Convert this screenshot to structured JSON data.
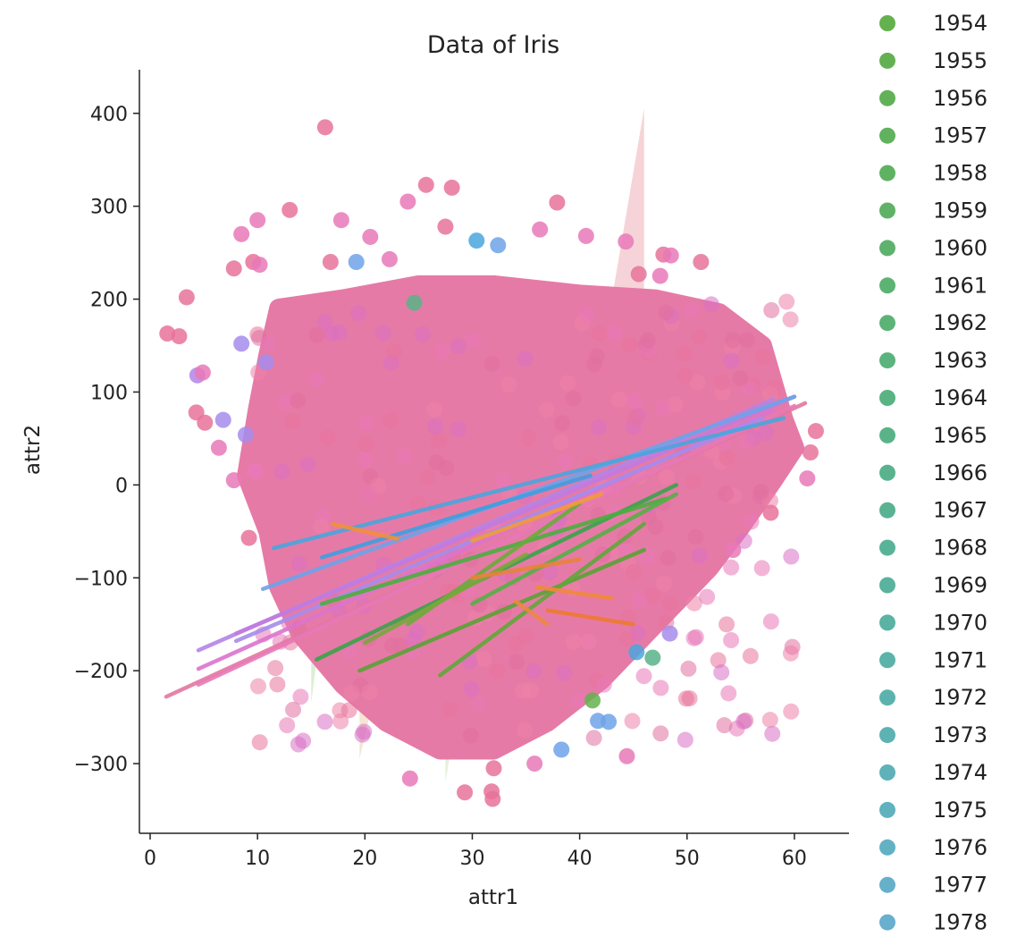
{
  "chart_data": {
    "type": "scatter",
    "title": "Data of Iris",
    "xlabel": "attr1",
    "ylabel": "attr2",
    "xlim": [
      -1,
      65
    ],
    "ylim": [
      -375,
      445
    ],
    "x_ticks": [
      0,
      10,
      20,
      30,
      40,
      50,
      60
    ],
    "y_ticks": [
      -300,
      -200,
      -100,
      0,
      100,
      200,
      300,
      400
    ],
    "y_tick_labels": [
      "−300",
      "−200",
      "−100",
      "0",
      "100",
      "200",
      "300",
      "400"
    ],
    "grid": false,
    "legend_placement": "right",
    "legend": [
      {
        "name": "1954",
        "color": "#64b14e"
      },
      {
        "name": "1955",
        "color": "#63b153"
      },
      {
        "name": "1956",
        "color": "#62b158"
      },
      {
        "name": "1957",
        "color": "#61b25e"
      },
      {
        "name": "1958",
        "color": "#60b263"
      },
      {
        "name": "1959",
        "color": "#5fb268"
      },
      {
        "name": "1960",
        "color": "#5eb26e"
      },
      {
        "name": "1961",
        "color": "#5db373"
      },
      {
        "name": "1962",
        "color": "#5cb378"
      },
      {
        "name": "1963",
        "color": "#5bb37d"
      },
      {
        "name": "1964",
        "color": "#5ab383"
      },
      {
        "name": "1965",
        "color": "#5ab388"
      },
      {
        "name": "1966",
        "color": "#59b38e"
      },
      {
        "name": "1967",
        "color": "#59b393"
      },
      {
        "name": "1968",
        "color": "#59b398"
      },
      {
        "name": "1969",
        "color": "#59b39e"
      },
      {
        "name": "1970",
        "color": "#5ab3a3"
      },
      {
        "name": "1971",
        "color": "#5bb3a9"
      },
      {
        "name": "1972",
        "color": "#5cb3ae"
      },
      {
        "name": "1973",
        "color": "#5db2b4"
      },
      {
        "name": "1974",
        "color": "#5fb2b9"
      },
      {
        "name": "1975",
        "color": "#61b2bf"
      },
      {
        "name": "1976",
        "color": "#63b1c4"
      },
      {
        "name": "1977",
        "color": "#66b0ca"
      },
      {
        "name": "1978",
        "color": "#69afcf"
      }
    ],
    "regression_lines": [
      {
        "x": [
          1.5,
          61
        ],
        "y": [
          -228,
          88
        ],
        "color": "#e377a0"
      },
      {
        "x": [
          4.5,
          60
        ],
        "y": [
          -215,
          85
        ],
        "color": "#e879b8"
      },
      {
        "x": [
          4.5,
          58
        ],
        "y": [
          -198,
          80
        ],
        "color": "#db74cf"
      },
      {
        "x": [
          4.5,
          58
        ],
        "y": [
          -178,
          92
        ],
        "color": "#b484e6"
      },
      {
        "x": [
          8,
          57
        ],
        "y": [
          -168,
          72
        ],
        "color": "#a68cec"
      },
      {
        "x": [
          8,
          60
        ],
        "y": [
          -160,
          95
        ],
        "color": "#c27be0"
      },
      {
        "x": [
          10.5,
          60
        ],
        "y": [
          -112,
          95
        ],
        "color": "#6fa3e8"
      },
      {
        "x": [
          11.5,
          59
        ],
        "y": [
          -68,
          72
        ],
        "color": "#4aa6dd"
      },
      {
        "x": [
          16,
          41
        ],
        "y": [
          -78,
          10
        ],
        "color": "#3f9fe0"
      },
      {
        "x": [
          15.5,
          49
        ],
        "y": [
          -188,
          0
        ],
        "color": "#3aa44b"
      },
      {
        "x": [
          16,
          48
        ],
        "y": [
          -128,
          -15
        ],
        "color": "#4caf40"
      },
      {
        "x": [
          19.5,
          46
        ],
        "y": [
          -200,
          -70
        ],
        "color": "#5aa336"
      },
      {
        "x": [
          27,
          46
        ],
        "y": [
          -205,
          -42
        ],
        "color": "#60a83a"
      },
      {
        "x": [
          24,
          40
        ],
        "y": [
          -150,
          -20
        ],
        "color": "#6aac3b"
      },
      {
        "x": [
          30,
          49
        ],
        "y": [
          -128,
          -10
        ],
        "color": "#56b046"
      },
      {
        "x": [
          20,
          35
        ],
        "y": [
          -170,
          -75
        ],
        "color": "#7aa83c"
      },
      {
        "x": [
          36,
          43
        ],
        "y": [
          -110,
          -122
        ],
        "color": "#f28a3a"
      },
      {
        "x": [
          37,
          45
        ],
        "y": [
          -135,
          -150
        ],
        "color": "#ee7b32"
      },
      {
        "x": [
          30,
          40
        ],
        "y": [
          -100,
          -80
        ],
        "color": "#e8833a"
      },
      {
        "x": [
          34,
          37
        ],
        "y": [
          -125,
          -150
        ],
        "color": "#ec8940"
      },
      {
        "x": [
          17,
          23
        ],
        "y": [
          -42,
          -58
        ],
        "color": "#f0913a"
      },
      {
        "x": [
          30,
          42
        ],
        "y": [
          -60,
          -10
        ],
        "color": "#f29b3c"
      }
    ],
    "confidence_bands": [
      {
        "x": [
          43,
          46,
          46
        ],
        "y": [
          200,
          405,
          200
        ],
        "color": "#f2c0c8"
      },
      {
        "x": [
          15,
          16,
          15
        ],
        "y": [
          -235,
          -140,
          -140
        ],
        "color": "#cfe6c4"
      },
      {
        "x": [
          19.5,
          21,
          19.5
        ],
        "y": [
          -295,
          -220,
          -220
        ],
        "color": "#f0dcc0"
      },
      {
        "x": [
          27.5,
          28.5,
          27.5
        ],
        "y": [
          -320,
          -250,
          -250
        ],
        "color": "#d6ecc8"
      }
    ],
    "outlier_points": [
      {
        "x": 16.3,
        "y": 385,
        "color": "#e8739a"
      },
      {
        "x": 25.7,
        "y": 323,
        "color": "#e8739a"
      },
      {
        "x": 28.1,
        "y": 320,
        "color": "#e8739a"
      },
      {
        "x": 13.0,
        "y": 296,
        "color": "#e8739a"
      },
      {
        "x": 24.0,
        "y": 305,
        "color": "#e879b8"
      },
      {
        "x": 37.9,
        "y": 304,
        "color": "#e8739a"
      },
      {
        "x": 10.0,
        "y": 285,
        "color": "#e879b8"
      },
      {
        "x": 17.8,
        "y": 285,
        "color": "#e879b8"
      },
      {
        "x": 8.5,
        "y": 270,
        "color": "#e879b8"
      },
      {
        "x": 20.5,
        "y": 267,
        "color": "#e879b8"
      },
      {
        "x": 27.5,
        "y": 278,
        "color": "#e8739a"
      },
      {
        "x": 30.4,
        "y": 263,
        "color": "#4aa6dd"
      },
      {
        "x": 32.4,
        "y": 258,
        "color": "#6fa3e8"
      },
      {
        "x": 36.3,
        "y": 275,
        "color": "#e879b8"
      },
      {
        "x": 40.6,
        "y": 268,
        "color": "#e879b8"
      },
      {
        "x": 44.3,
        "y": 262,
        "color": "#e879b8"
      },
      {
        "x": 9.6,
        "y": 240,
        "color": "#e8739a"
      },
      {
        "x": 10.2,
        "y": 237,
        "color": "#e879b8"
      },
      {
        "x": 7.8,
        "y": 233,
        "color": "#e8739a"
      },
      {
        "x": 16.8,
        "y": 240,
        "color": "#e8739a"
      },
      {
        "x": 19.2,
        "y": 240,
        "color": "#6fa3e8"
      },
      {
        "x": 22.3,
        "y": 243,
        "color": "#e879b8"
      },
      {
        "x": 47.8,
        "y": 248,
        "color": "#e8739a"
      },
      {
        "x": 48.5,
        "y": 247,
        "color": "#e879b8"
      },
      {
        "x": 51.3,
        "y": 240,
        "color": "#e8739a"
      },
      {
        "x": 45.5,
        "y": 227,
        "color": "#e8739a"
      },
      {
        "x": 47.5,
        "y": 225,
        "color": "#e879b8"
      },
      {
        "x": 3.4,
        "y": 202,
        "color": "#e8739a"
      },
      {
        "x": 1.6,
        "y": 163,
        "color": "#e8739a"
      },
      {
        "x": 2.7,
        "y": 160,
        "color": "#e8739a"
      },
      {
        "x": 24.6,
        "y": 196,
        "color": "#5ab388"
      },
      {
        "x": 10.8,
        "y": 132,
        "color": "#a68cec"
      },
      {
        "x": 8.5,
        "y": 152,
        "color": "#a68cec"
      },
      {
        "x": 4.4,
        "y": 118,
        "color": "#b484e6"
      },
      {
        "x": 4.9,
        "y": 121,
        "color": "#e879b8"
      },
      {
        "x": 4.3,
        "y": 78,
        "color": "#e8739a"
      },
      {
        "x": 5.1,
        "y": 67,
        "color": "#e8739a"
      },
      {
        "x": 6.4,
        "y": 40,
        "color": "#e879b8"
      },
      {
        "x": 6.8,
        "y": 70,
        "color": "#a68cec"
      },
      {
        "x": 8.9,
        "y": 54,
        "color": "#a68cec"
      },
      {
        "x": 9.8,
        "y": 15,
        "color": "#e879b8"
      },
      {
        "x": 7.8,
        "y": 5,
        "color": "#e879b8"
      },
      {
        "x": 9.2,
        "y": -57,
        "color": "#e8739a"
      },
      {
        "x": 62,
        "y": 58,
        "color": "#e8739a"
      },
      {
        "x": 61.5,
        "y": 35,
        "color": "#e8739a"
      },
      {
        "x": 61.2,
        "y": 7,
        "color": "#e879b8"
      },
      {
        "x": 57.8,
        "y": -30,
        "color": "#e8739a"
      },
      {
        "x": 54.3,
        "y": -70,
        "color": "#e879b8"
      },
      {
        "x": 46.8,
        "y": -186,
        "color": "#5ab388"
      },
      {
        "x": 48.4,
        "y": -160,
        "color": "#a68cec"
      },
      {
        "x": 45.3,
        "y": -180,
        "color": "#4aa6dd"
      },
      {
        "x": 44.4,
        "y": -292,
        "color": "#e879b8"
      },
      {
        "x": 41.2,
        "y": -232,
        "color": "#64b14e"
      },
      {
        "x": 42.7,
        "y": -255,
        "color": "#6fa3e8"
      },
      {
        "x": 41.7,
        "y": -254,
        "color": "#6fa3e8"
      },
      {
        "x": 31.9,
        "y": -338,
        "color": "#e8739a"
      },
      {
        "x": 31.8,
        "y": -330,
        "color": "#e8739a"
      },
      {
        "x": 29.3,
        "y": -331,
        "color": "#e8739a"
      },
      {
        "x": 24.2,
        "y": -316,
        "color": "#e879b8"
      },
      {
        "x": 35.8,
        "y": -300,
        "color": "#e879b8"
      },
      {
        "x": 38.3,
        "y": -285,
        "color": "#6fa3e8"
      },
      {
        "x": 32.0,
        "y": -305,
        "color": "#e8739a"
      }
    ]
  }
}
